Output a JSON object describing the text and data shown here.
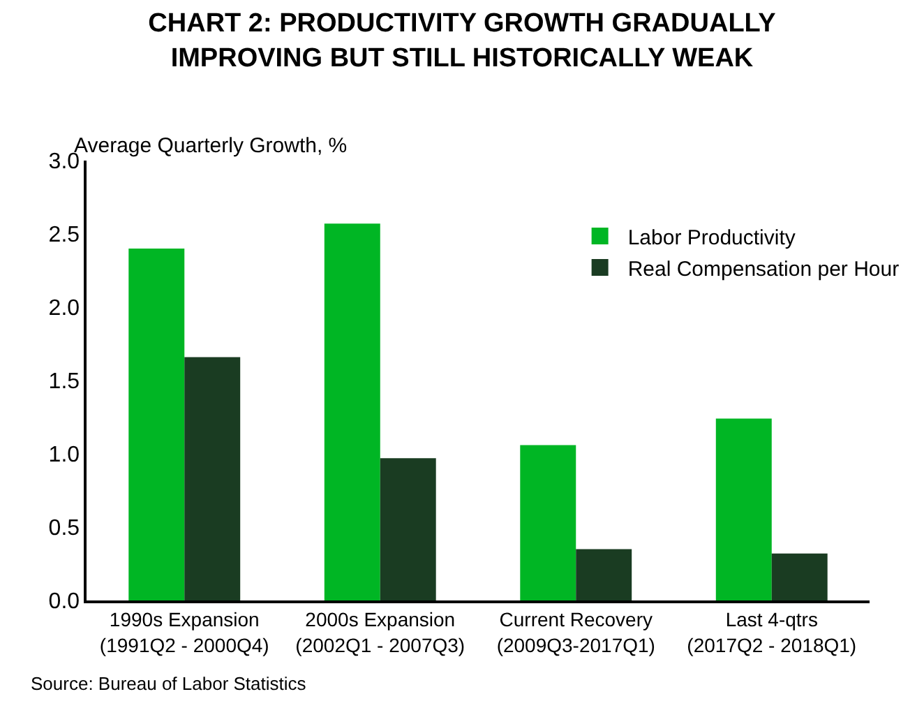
{
  "chart_data": {
    "type": "bar",
    "title": "CHART 2: PRODUCTIVITY GROWTH GRADUALLY\nIMPROVING BUT STILL HISTORICALLY WEAK",
    "ylabel": "Average Quarterly Growth, %",
    "categories": [
      "1990s Expansion\n(1991Q2 - 2000Q4)",
      "2000s Expansion\n(2002Q1 - 2007Q3)",
      "Current Recovery\n(2009Q3-2017Q1)",
      "Last 4-qtrs\n(2017Q2 - 2018Q1)"
    ],
    "series": [
      {
        "name": "Labor Productivity",
        "color": "#00b624",
        "values": [
          2.4,
          2.57,
          1.06,
          1.24
        ]
      },
      {
        "name": "Real Compensation per Hour",
        "color": "#1a3c22",
        "values": [
          1.66,
          0.97,
          0.35,
          0.32
        ]
      }
    ],
    "ylim": [
      0,
      3.0
    ],
    "yticks": [
      {
        "value": 0,
        "label": "0.0"
      },
      {
        "value": 0.5,
        "label": "0.5"
      },
      {
        "value": 1,
        "label": "1.0"
      },
      {
        "value": 1.5,
        "label": "1.5"
      },
      {
        "value": 2,
        "label": "2.0"
      },
      {
        "value": 2.5,
        "label": "2.5"
      },
      {
        "value": 3,
        "label": "3.0"
      }
    ],
    "grid": false,
    "legend": "top right",
    "annotations": [
      "Source: Bureau of Labor Statistics"
    ]
  }
}
